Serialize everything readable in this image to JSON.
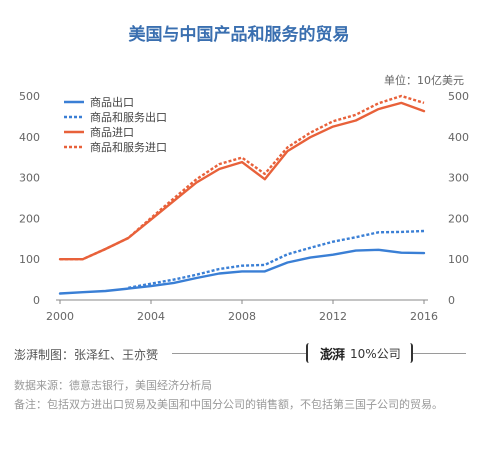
{
  "title": "美国与中国产品和服务的贸易",
  "unit": "单位：10亿美元",
  "credit": "澎湃制图：张泽红、王亦赟",
  "logo": {
    "mark": "澎湃",
    "text": "10%公司"
  },
  "source": "数据来源：德意志银行，美国经济分析局",
  "note": "备注：包括双方进出口贸易及美国和中国分公司的销售额，不包括第三国子公司的贸易。",
  "colors": {
    "export": "#3a7fd5",
    "import": "#e8613a",
    "axis": "#888888",
    "title": "#3a6fb0"
  },
  "chart_data": {
    "type": "line",
    "x": [
      2000,
      2001,
      2002,
      2003,
      2004,
      2005,
      2006,
      2007,
      2008,
      2009,
      2010,
      2011,
      2012,
      2013,
      2014,
      2015,
      2016
    ],
    "series": [
      {
        "name": "商品出口",
        "style": "solid",
        "color": "export",
        "x": [
          2000,
          2001,
          2002,
          2003,
          2004,
          2005,
          2006,
          2007,
          2008,
          2009,
          2010,
          2011,
          2012,
          2013,
          2014,
          2015,
          2016
        ],
        "values": [
          16,
          19,
          22,
          28,
          34,
          42,
          54,
          65,
          70,
          70,
          92,
          104,
          111,
          121,
          123,
          116,
          115
        ]
      },
      {
        "name": "商品和服务出口",
        "style": "dashed",
        "color": "export",
        "x": [
          2003,
          2004,
          2005,
          2006,
          2007,
          2008,
          2009,
          2010,
          2011,
          2012,
          2013,
          2014,
          2015,
          2016
        ],
        "values": [
          30,
          40,
          50,
          62,
          76,
          84,
          86,
          112,
          128,
          143,
          154,
          166,
          167,
          169
        ]
      },
      {
        "name": "商品进口",
        "style": "solid",
        "color": "import",
        "x": [
          2000,
          2001,
          2002,
          2003,
          2004,
          2005,
          2006,
          2007,
          2008,
          2009,
          2010,
          2011,
          2012,
          2013,
          2014,
          2015,
          2016
        ],
        "values": [
          100,
          100,
          125,
          152,
          197,
          243,
          288,
          321,
          338,
          296,
          365,
          399,
          425,
          440,
          468,
          483,
          463
        ]
      },
      {
        "name": "商品和服务进口",
        "style": "dashed",
        "color": "import",
        "x": [
          2000,
          2001,
          2002,
          2003,
          2004,
          2005,
          2006,
          2007,
          2008,
          2009,
          2010,
          2011,
          2012,
          2013,
          2014,
          2015,
          2016
        ],
        "values": [
          100,
          100,
          125,
          152,
          201,
          249,
          296,
          333,
          349,
          309,
          374,
          410,
          438,
          454,
          482,
          500,
          483
        ]
      }
    ],
    "xticks": [
      2000,
      2004,
      2008,
      2012,
      2016
    ],
    "yticks": [
      0,
      100,
      200,
      300,
      400,
      500
    ],
    "xlim": [
      2000,
      2016
    ],
    "ylim": [
      0,
      500
    ],
    "grid": false,
    "legend": "top-left",
    "secondary_y_axis": true
  }
}
